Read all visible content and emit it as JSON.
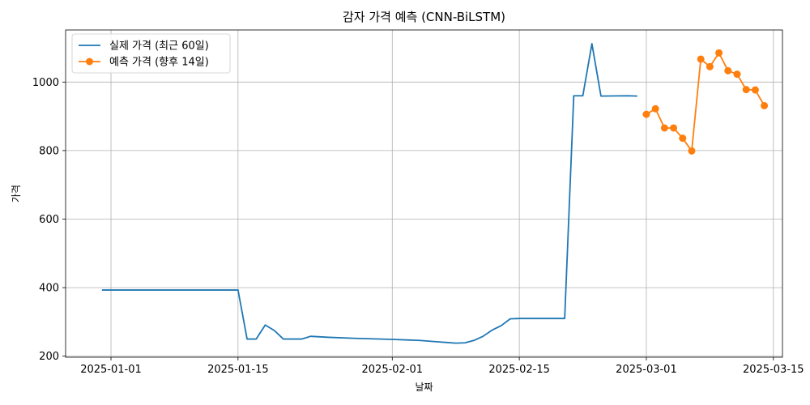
{
  "chart_data": {
    "type": "line",
    "title": "감자 가격 예측 (CNN-BiLSTM)",
    "xlabel": "날짜",
    "ylabel": "가격",
    "xlim": [
      "2024-12-27",
      "2025-03-16"
    ],
    "ylim": [
      197,
      1152
    ],
    "grid": true,
    "legend_position": "top-left",
    "x_ticks": [
      "2025-01-01",
      "2025-01-15",
      "2025-02-01",
      "2025-02-15",
      "2025-03-01",
      "2025-03-15"
    ],
    "y_ticks": [
      200,
      400,
      600,
      800,
      1000
    ],
    "series": [
      {
        "name": "실제 가격 (최근 60일)",
        "color": "#1f77b4",
        "marker": "none",
        "points": [
          {
            "x": "2024-12-31",
            "y": 393
          },
          {
            "x": "2025-01-15",
            "y": 393
          },
          {
            "x": "2025-01-16",
            "y": 250
          },
          {
            "x": "2025-01-17",
            "y": 250
          },
          {
            "x": "2025-01-18",
            "y": 291
          },
          {
            "x": "2025-01-19",
            "y": 275
          },
          {
            "x": "2025-01-20",
            "y": 250
          },
          {
            "x": "2025-01-22",
            "y": 250
          },
          {
            "x": "2025-01-23",
            "y": 258
          },
          {
            "x": "2025-01-25",
            "y": 255
          },
          {
            "x": "2025-01-28",
            "y": 252
          },
          {
            "x": "2025-02-01",
            "y": 249
          },
          {
            "x": "2025-02-04",
            "y": 246
          },
          {
            "x": "2025-02-06",
            "y": 242
          },
          {
            "x": "2025-02-07",
            "y": 240
          },
          {
            "x": "2025-02-08",
            "y": 238
          },
          {
            "x": "2025-02-09",
            "y": 239
          },
          {
            "x": "2025-02-10",
            "y": 246
          },
          {
            "x": "2025-02-11",
            "y": 258
          },
          {
            "x": "2025-02-12",
            "y": 276
          },
          {
            "x": "2025-02-13",
            "y": 289
          },
          {
            "x": "2025-02-14",
            "y": 309
          },
          {
            "x": "2025-02-15",
            "y": 310
          },
          {
            "x": "2025-02-20",
            "y": 310
          },
          {
            "x": "2025-02-21",
            "y": 960
          },
          {
            "x": "2025-02-22",
            "y": 960
          },
          {
            "x": "2025-02-23",
            "y": 1112
          },
          {
            "x": "2025-02-24",
            "y": 959
          },
          {
            "x": "2025-02-27",
            "y": 960
          },
          {
            "x": "2025-02-28",
            "y": 959
          }
        ]
      },
      {
        "name": "예측 가격 (향후 14일)",
        "color": "#ff7f0e",
        "marker": "circle",
        "points": [
          {
            "x": "2025-03-01",
            "y": 906
          },
          {
            "x": "2025-03-02",
            "y": 922
          },
          {
            "x": "2025-03-03",
            "y": 866
          },
          {
            "x": "2025-03-04",
            "y": 866
          },
          {
            "x": "2025-03-05",
            "y": 836
          },
          {
            "x": "2025-03-06",
            "y": 799
          },
          {
            "x": "2025-03-07",
            "y": 1067
          },
          {
            "x": "2025-03-08",
            "y": 1045
          },
          {
            "x": "2025-03-09",
            "y": 1085
          },
          {
            "x": "2025-03-10",
            "y": 1033
          },
          {
            "x": "2025-03-11",
            "y": 1023
          },
          {
            "x": "2025-03-12",
            "y": 978
          },
          {
            "x": "2025-03-13",
            "y": 977
          },
          {
            "x": "2025-03-14",
            "y": 931
          }
        ]
      }
    ]
  }
}
